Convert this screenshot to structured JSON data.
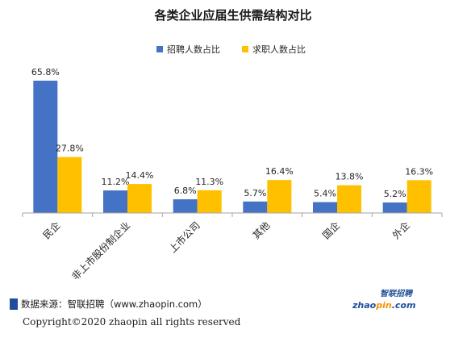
{
  "colors": {
    "recruit": "#4472C4",
    "applicant": "#FFC000",
    "source_square": "#1F4E9A",
    "logo_blue": "#1F4E9A",
    "logo_orange": "#F29400"
  },
  "chart_data": {
    "type": "bar",
    "title": "各类企业应届生供需结构对比",
    "categories": [
      "民企",
      "非上市股份制企业",
      "上市公司",
      "其他",
      "国企",
      "外企"
    ],
    "series": [
      {
        "name": "招聘人数占比",
        "values": [
          65.8,
          11.2,
          6.8,
          5.7,
          5.4,
          5.2
        ],
        "labels": [
          "65.8%",
          "11.2%",
          "6.8%",
          "5.7%",
          "5.4%",
          "5.2%"
        ]
      },
      {
        "name": "求职人数占比",
        "values": [
          27.8,
          14.4,
          11.3,
          16.4,
          13.8,
          16.3
        ],
        "labels": [
          "27.8%",
          "14.4%",
          "11.3%",
          "16.4%",
          "13.8%",
          "16.3%"
        ]
      }
    ],
    "xlabel": "",
    "ylabel": "",
    "ylim": [
      0,
      65.8
    ],
    "legend_position": "top-center",
    "grid": false
  },
  "footer": {
    "source": "数据来源：智联招聘（www.zhaopin.com）",
    "copyright": "Copyright©2020 zhaopin all rights reserved",
    "logo_cn": "智联招聘",
    "logo_en_part1": "zhao",
    "logo_en_part2": "pin",
    "logo_en_part3": ".com"
  }
}
